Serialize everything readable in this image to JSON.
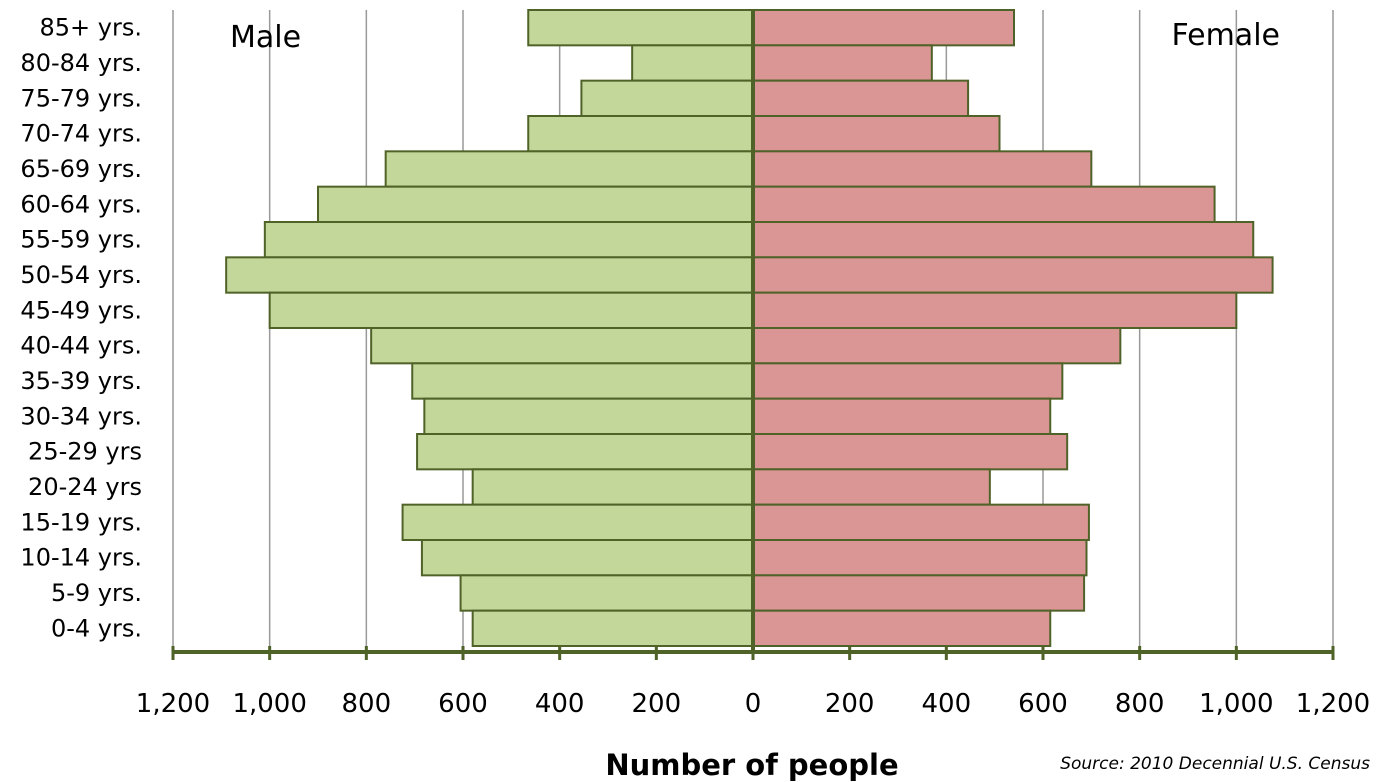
{
  "chart_data": {
    "type": "bar",
    "orientation": "horizontal-population-pyramid",
    "categories": [
      "85+ yrs.",
      "80-84 yrs.",
      "75-79 yrs.",
      "70-74 yrs.",
      "65-69 yrs.",
      "60-64 yrs.",
      "55-59 yrs.",
      "50-54 yrs.",
      "45-49 yrs.",
      "40-44 yrs.",
      "35-39 yrs.",
      "30-34 yrs.",
      "25-29 yrs",
      "20-24 yrs",
      "15-19 yrs.",
      "10-14 yrs.",
      "5-9 yrs.",
      "0-4 yrs."
    ],
    "series": [
      {
        "name": "Male",
        "color": "#c4d79b",
        "values": [
          465,
          250,
          355,
          465,
          760,
          900,
          1010,
          1090,
          1000,
          790,
          705,
          680,
          695,
          580,
          725,
          685,
          605,
          580
        ]
      },
      {
        "name": "Female",
        "color": "#da9694",
        "values": [
          540,
          370,
          445,
          510,
          700,
          955,
          1035,
          1075,
          1000,
          760,
          640,
          615,
          650,
          490,
          695,
          690,
          685,
          615
        ]
      }
    ],
    "xlabel": "Number of people",
    "xlim": [
      -1200,
      1200
    ],
    "tick_values": [
      -1200,
      -1000,
      -800,
      -600,
      -400,
      -200,
      0,
      200,
      400,
      600,
      800,
      1000,
      1200
    ],
    "tick_labels": [
      "1,200",
      "1,000",
      "800",
      "600",
      "400",
      "200",
      "0",
      "200",
      "400",
      "600",
      "800",
      "1,000",
      "1,200"
    ],
    "legend": [
      "Male",
      "Female"
    ],
    "gridlines": true,
    "source": "Source: 2010 Decennial U.S. Census",
    "colors": {
      "bar_stroke": "#4f6228",
      "axis": "#4f6228",
      "grid": "#999999"
    }
  }
}
